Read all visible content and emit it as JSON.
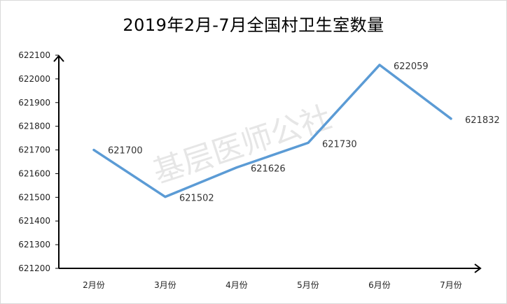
{
  "chart_data": {
    "type": "line",
    "title": "2019年2月-7月全国村卫生室数量",
    "categories": [
      "2月份",
      "3月份",
      "4月份",
      "5月份",
      "6月份",
      "7月份"
    ],
    "series": [
      {
        "values": [
          621700,
          621502,
          621626,
          621730,
          622059,
          621832
        ]
      }
    ],
    "data_labels": [
      "621700",
      "621502",
      "621626",
      "621730",
      "622059",
      "621832"
    ],
    "yticks": [
      "621200",
      "621300",
      "621400",
      "621500",
      "621600",
      "621700",
      "621800",
      "621900",
      "622000",
      "622100"
    ],
    "ylim": [
      621200,
      622100
    ],
    "grid": false,
    "line_color": "#5B9BD5",
    "axis_color": "#000000"
  }
}
